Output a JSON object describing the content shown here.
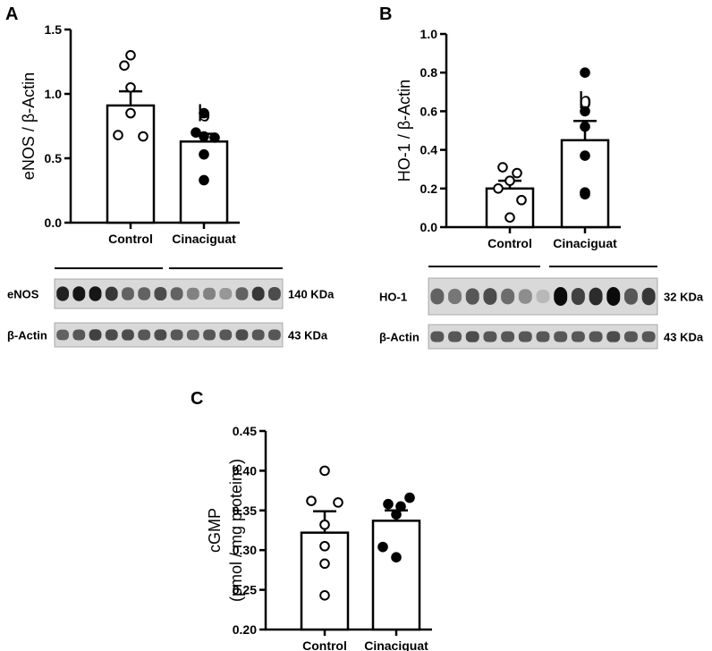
{
  "chart_data": [
    {
      "panel": "A",
      "type": "bar",
      "categories": [
        "Control",
        "Cinaciguat"
      ],
      "values": [
        0.91,
        0.63
      ],
      "sem": [
        0.11,
        0.06
      ],
      "points": [
        [
          1.3,
          1.22,
          1.05,
          0.85,
          0.68,
          0.67
        ],
        [
          0.85,
          0.7,
          0.67,
          0.66,
          0.53,
          0.33
        ]
      ],
      "point_fill": [
        "open",
        "filled"
      ],
      "annotations": [
        "",
        "b"
      ],
      "ylabel": "eNOS / β-Actin",
      "ylim": [
        0,
        1.5
      ],
      "yticks": [
        "0.0",
        "0.5",
        "1.0",
        "1.5"
      ],
      "blot": {
        "rows": [
          {
            "label": "eNOS",
            "size": "140 KDa",
            "lanes": [
              0.85,
              0.9,
              0.9,
              0.75,
              0.55,
              0.55,
              0.65,
              0.55,
              0.4,
              0.4,
              0.3,
              0.55,
              0.75,
              0.65
            ]
          },
          {
            "label": "β-Actin",
            "size": "43 KDa",
            "lanes": [
              0.55,
              0.6,
              0.7,
              0.65,
              0.65,
              0.6,
              0.65,
              0.6,
              0.55,
              0.6,
              0.6,
              0.65,
              0.6,
              0.6
            ]
          }
        ]
      }
    },
    {
      "panel": "B",
      "type": "bar",
      "categories": [
        "Control",
        "Cinaciguat"
      ],
      "values": [
        0.2,
        0.45
      ],
      "sem": [
        0.04,
        0.1
      ],
      "points": [
        [
          0.31,
          0.28,
          0.24,
          0.2,
          0.14,
          0.05
        ],
        [
          0.8,
          0.6,
          0.52,
          0.37,
          0.18,
          0.17
        ]
      ],
      "point_fill": [
        "open",
        "filled"
      ],
      "annotations": [
        "",
        "b"
      ],
      "ylabel": "HO-1 / β-Actin",
      "ylim": [
        0,
        1.0
      ],
      "yticks": [
        "0.0",
        "0.2",
        "0.4",
        "0.6",
        "0.8",
        "1.0"
      ],
      "blot": {
        "rows": [
          {
            "label": "HO-1",
            "size": "32 KDa",
            "lanes": [
              0.55,
              0.45,
              0.6,
              0.65,
              0.5,
              0.35,
              0.15,
              0.95,
              0.7,
              0.8,
              0.95,
              0.6,
              0.75
            ]
          },
          {
            "label": "β-Actin",
            "size": "43 KDa",
            "lanes": [
              0.6,
              0.6,
              0.65,
              0.6,
              0.6,
              0.6,
              0.6,
              0.6,
              0.6,
              0.6,
              0.65,
              0.6,
              0.6
            ]
          }
        ]
      }
    },
    {
      "panel": "C",
      "type": "bar",
      "categories": [
        "Control",
        "Cinaciguat"
      ],
      "values": [
        0.322,
        0.337
      ],
      "sem": [
        0.027,
        0.013
      ],
      "points": [
        [
          0.4,
          0.362,
          0.36,
          0.332,
          0.305,
          0.283,
          0.243
        ],
        [
          0.366,
          0.358,
          0.355,
          0.345,
          0.304,
          0.291
        ]
      ],
      "point_fill": [
        "open",
        "filled"
      ],
      "annotations": [
        "",
        ""
      ],
      "ylabel": "cGMP",
      "ylabel2": "(pmol / mg proteins)",
      "ylim": [
        0.2,
        0.45
      ],
      "yticks": [
        "0.20",
        "0.25",
        "0.30",
        "0.35",
        "0.40",
        "0.45"
      ]
    }
  ],
  "colors": {
    "ink": "#000000",
    "bar_fill": "#ffffff",
    "blot_bg": "#d9d9d9"
  }
}
